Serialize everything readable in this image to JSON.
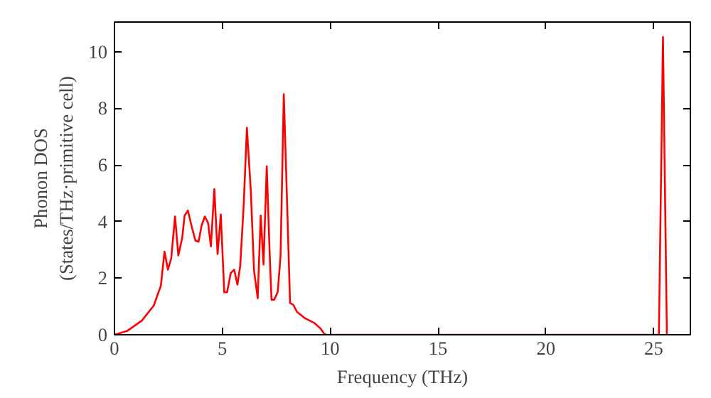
{
  "chart_data": {
    "type": "line",
    "xlabel": "Frequency (THz)",
    "ylabel": "Phonon DOS\n(States/THz·primitive cell)",
    "x": [
      0,
      0.6,
      1.27,
      1.82,
      2.15,
      2.32,
      2.48,
      2.63,
      2.81,
      2.96,
      3.14,
      3.25,
      3.4,
      3.57,
      3.75,
      3.9,
      4.04,
      4.19,
      4.34,
      4.47,
      4.63,
      4.78,
      4.93,
      5.09,
      5.22,
      5.39,
      5.55,
      5.7,
      5.83,
      5.99,
      6.14,
      6.32,
      6.47,
      6.64,
      6.78,
      6.91,
      7.06,
      7.19,
      7.28,
      7.41,
      7.57,
      7.7,
      7.85,
      8.0,
      8.14,
      8.29,
      8.46,
      8.84,
      9.28,
      9.54,
      9.71,
      9.82,
      25.24,
      25.43,
      25.61
    ],
    "series": [
      {
        "color": "#ff0000",
        "values": [
          0,
          0.14,
          0.5,
          1.03,
          1.73,
          2.94,
          2.3,
          2.7,
          4.18,
          2.8,
          3.42,
          4.21,
          4.39,
          3.86,
          3.33,
          3.29,
          3.86,
          4.18,
          3.95,
          3.12,
          5.15,
          2.85,
          4.25,
          1.5,
          1.5,
          2.18,
          2.3,
          1.77,
          2.44,
          4.57,
          7.31,
          5.1,
          2.27,
          1.29,
          4.21,
          2.48,
          5.95,
          2.97,
          1.24,
          1.24,
          1.52,
          2.8,
          8.5,
          4.74,
          1.12,
          1.06,
          0.81,
          0.58,
          0.41,
          0.23,
          0.05,
          0,
          0,
          10.52,
          0
        ]
      }
    ],
    "xlim": [
      0,
      26.7
    ],
    "ylim": [
      0,
      11.05
    ],
    "xticks": [
      0,
      5,
      10,
      15,
      20,
      25
    ],
    "yticks": [
      0,
      2,
      4,
      6,
      8,
      10
    ],
    "grid": false,
    "marker": "none",
    "line_style": "solid"
  }
}
